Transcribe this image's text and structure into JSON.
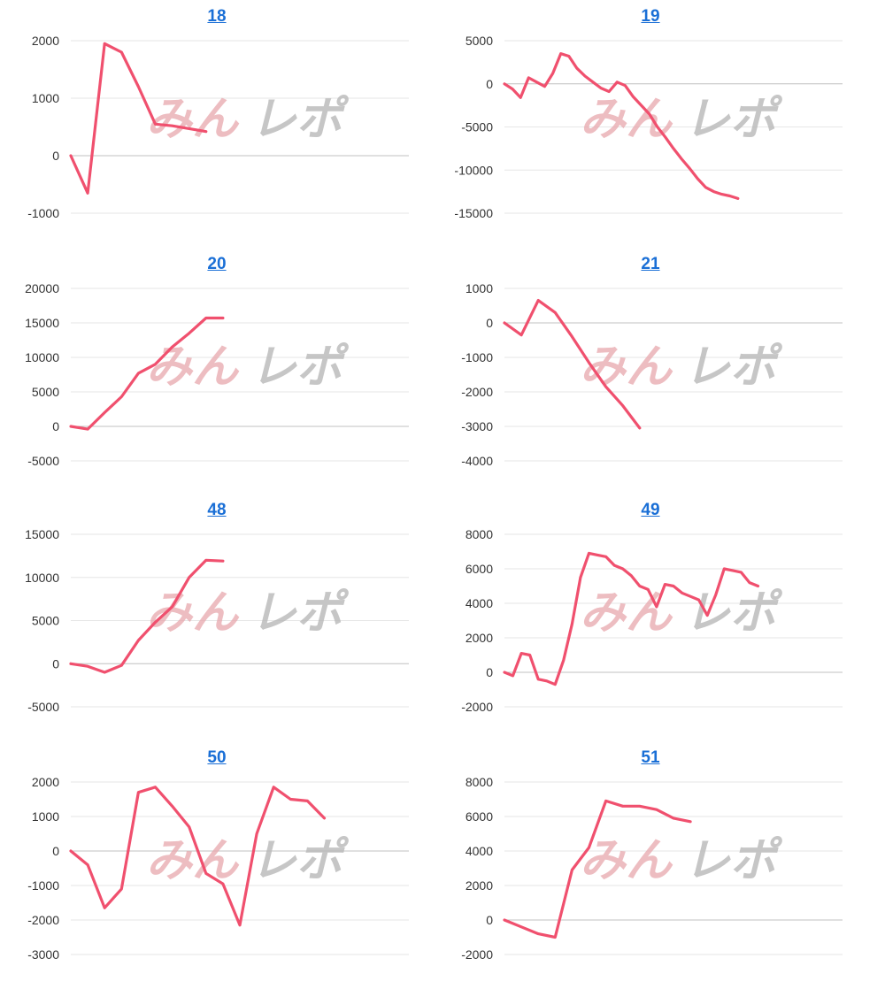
{
  "style": {
    "line_color": "#f0506e",
    "grid_color": "#e6e6e6",
    "zero_color": "#c0c0c0",
    "title_color": "#1a6fd6"
  },
  "watermark": {
    "part1": "みん",
    "part2": "レポ"
  },
  "chart_data": [
    {
      "type": "line",
      "title": "18",
      "ylim": [
        -1000,
        2000
      ],
      "ticks": [
        2000,
        1000,
        0,
        -1000
      ],
      "x_max": 20,
      "values": [
        0,
        -650,
        1950,
        1800,
        1200,
        550,
        520,
        470,
        420
      ]
    },
    {
      "type": "line",
      "title": "19",
      "ylim": [
        -15000,
        5000
      ],
      "ticks": [
        5000,
        0,
        -5000,
        -10000,
        -15000
      ],
      "x_max": 42,
      "values": [
        0,
        -600,
        -1600,
        700,
        200,
        -300,
        1200,
        3500,
        3200,
        1800,
        900,
        200,
        -500,
        -900,
        200,
        -200,
        -1500,
        -2500,
        -3500,
        -5000,
        -6200,
        -7500,
        -8700,
        -9800,
        -11000,
        -12000,
        -12500,
        -12800,
        -13000,
        -13300
      ]
    },
    {
      "type": "line",
      "title": "20",
      "ylim": [
        -5000,
        20000
      ],
      "ticks": [
        20000,
        15000,
        10000,
        5000,
        0,
        -5000
      ],
      "x_max": 20,
      "values": [
        0,
        -400,
        2000,
        4300,
        7700,
        9000,
        11500,
        13500,
        15700,
        15700
      ]
    },
    {
      "type": "line",
      "title": "21",
      "ylim": [
        -4000,
        1000
      ],
      "ticks": [
        1000,
        0,
        -1000,
        -2000,
        -3000,
        -4000
      ],
      "x_max": 20,
      "values": [
        0,
        -350,
        650,
        300,
        -400,
        -1150,
        -1850,
        -2400,
        -3050
      ]
    },
    {
      "type": "line",
      "title": "48",
      "ylim": [
        -5000,
        15000
      ],
      "ticks": [
        15000,
        10000,
        5000,
        0,
        -5000
      ],
      "x_max": 20,
      "values": [
        0,
        -300,
        -1000,
        -200,
        2700,
        4800,
        6600,
        10000,
        12000,
        11900
      ]
    },
    {
      "type": "line",
      "title": "49",
      "ylim": [
        -2000,
        8000
      ],
      "ticks": [
        8000,
        6000,
        4000,
        2000,
        0,
        -2000
      ],
      "x_max": 40,
      "values": [
        0,
        -200,
        1100,
        1000,
        -400,
        -500,
        -700,
        700,
        2800,
        5500,
        6900,
        6800,
        6700,
        6200,
        6000,
        5600,
        5000,
        4800,
        3800,
        5100,
        5000,
        4600,
        4400,
        4200,
        3300,
        4500,
        6000,
        5900,
        5800,
        5200,
        5000
      ]
    },
    {
      "type": "line",
      "title": "50",
      "ylim": [
        -3000,
        2000
      ],
      "ticks": [
        2000,
        1000,
        0,
        -1000,
        -2000,
        -3000
      ],
      "x_max": 20,
      "values": [
        0,
        -400,
        -1650,
        -1100,
        1700,
        1850,
        1300,
        700,
        -650,
        -950,
        -2150,
        500,
        1850,
        1500,
        1450,
        950
      ]
    },
    {
      "type": "line",
      "title": "51",
      "ylim": [
        -2000,
        8000
      ],
      "ticks": [
        8000,
        6000,
        4000,
        2000,
        0,
        -2000
      ],
      "x_max": 20,
      "values": [
        0,
        -400,
        -800,
        -1000,
        2900,
        4200,
        6900,
        6600,
        6600,
        6400,
        5900,
        5700
      ]
    }
  ]
}
